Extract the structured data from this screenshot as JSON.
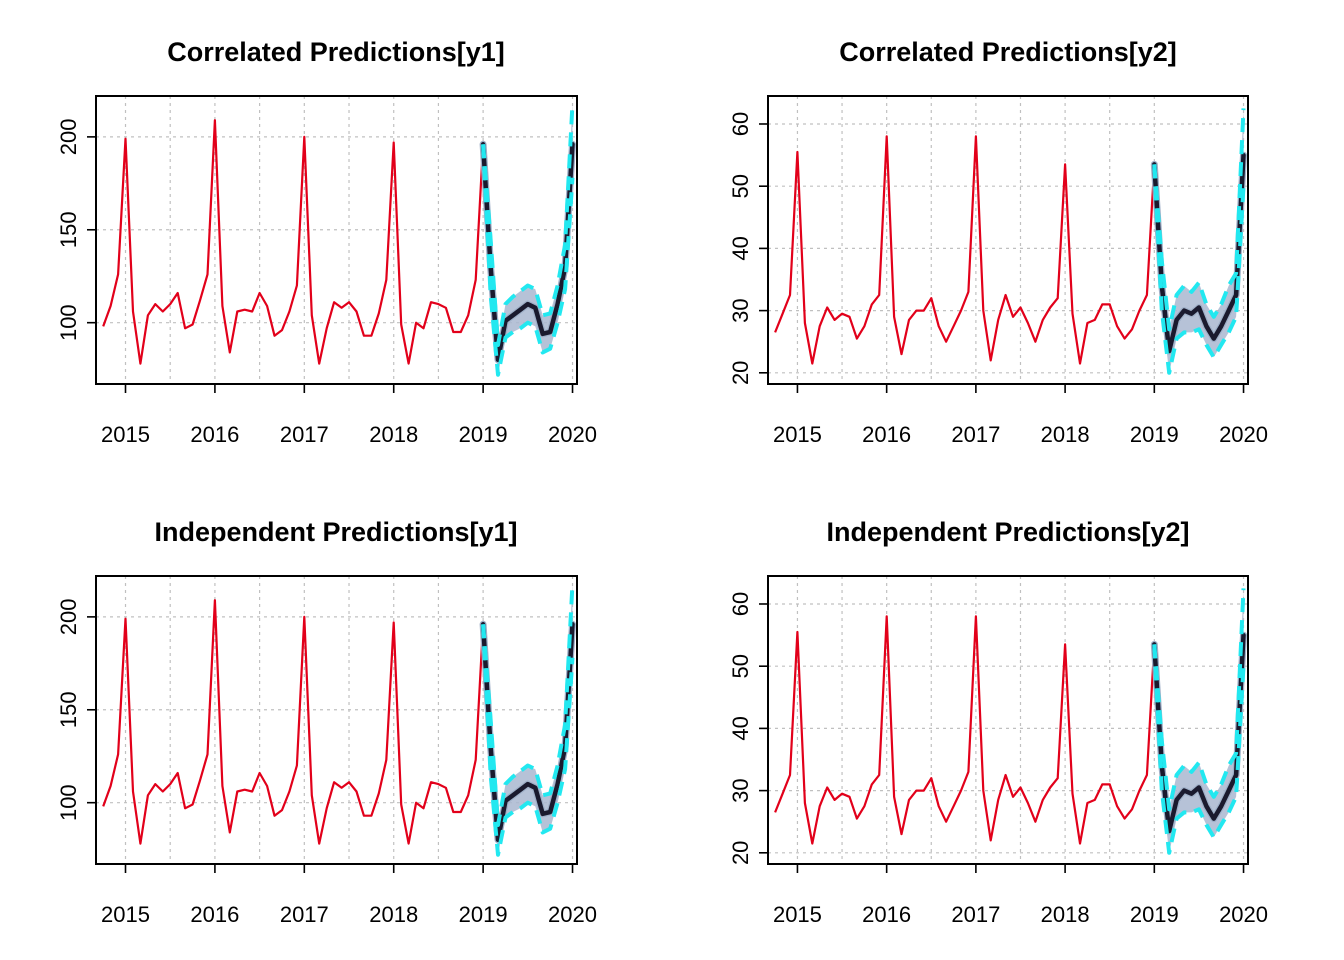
{
  "panels": [
    {
      "title": "Correlated Predictions[y1]",
      "x_ticks": [
        "2015",
        "2016",
        "2017",
        "2018",
        "2019",
        "2020"
      ],
      "y_ticks": [
        "100",
        "150",
        "200"
      ]
    },
    {
      "title": "Correlated Predictions[y2]",
      "x_ticks": [
        "2015",
        "2016",
        "2017",
        "2018",
        "2019",
        "2020"
      ],
      "y_ticks": [
        "20",
        "30",
        "40",
        "50",
        "60"
      ]
    },
    {
      "title": "Independent Predictions[y1]",
      "x_ticks": [
        "2015",
        "2016",
        "2017",
        "2018",
        "2019",
        "2020"
      ],
      "y_ticks": [
        "100",
        "150",
        "200"
      ]
    },
    {
      "title": "Independent Predictions[y2]",
      "x_ticks": [
        "2015",
        "2016",
        "2017",
        "2018",
        "2019",
        "2020"
      ],
      "y_ticks": [
        "20",
        "30",
        "40",
        "50",
        "60"
      ]
    }
  ],
  "colors": {
    "observed": "#e2001a",
    "prediction": "#1a1a2e",
    "interval_band": "#a9b7d0",
    "interval_bounds": "#22e8f0",
    "grid": "#c0c0c0",
    "axis": "#000000"
  },
  "chart_data": [
    {
      "type": "line",
      "title": "Correlated Predictions[y1]",
      "xlabel": "",
      "ylabel": "",
      "xlim": [
        2014.67,
        2020.05
      ],
      "ylim": [
        67,
        222
      ],
      "x_ticks": [
        2015,
        2016,
        2017,
        2018,
        2019,
        2020
      ],
      "y_ticks": [
        100,
        150,
        200
      ],
      "grid": true,
      "series": [
        {
          "role": "observed",
          "x_start": 2014.75,
          "x_step": 0.08333,
          "values": [
            98,
            109,
            126,
            199,
            106,
            78,
            104,
            110,
            106,
            110,
            116,
            97,
            99,
            112,
            126,
            209,
            109,
            84,
            106,
            107,
            106,
            116,
            109,
            93,
            96,
            106,
            120,
            200,
            104,
            78,
            97,
            111,
            108,
            111,
            106,
            93,
            93,
            105,
            123,
            197,
            99,
            78,
            100,
            97,
            111,
            110,
            108,
            95,
            95,
            104,
            123,
            196
          ]
        },
        {
          "role": "prediction",
          "x_start": 2019.0,
          "x_step": 0.08333,
          "values": [
            196,
            130,
            80,
            101,
            104,
            107,
            110,
            108,
            94,
            95,
            110,
            130,
            196
          ]
        },
        {
          "role": "interval_lower",
          "x_start": 2019.0,
          "x_step": 0.08333,
          "values": [
            196,
            115,
            72,
            92,
            95,
            97,
            100,
            98,
            84,
            86,
            100,
            118,
            178
          ]
        },
        {
          "role": "interval_upper",
          "x_start": 2019.0,
          "x_step": 0.08333,
          "values": [
            196,
            145,
            88,
            110,
            114,
            117,
            120,
            118,
            104,
            105,
            120,
            142,
            218
          ]
        }
      ]
    },
    {
      "type": "line",
      "title": "Correlated Predictions[y2]",
      "xlabel": "",
      "ylabel": "",
      "xlim": [
        2014.67,
        2020.05
      ],
      "ylim": [
        18.2,
        64.5
      ],
      "x_ticks": [
        2015,
        2016,
        2017,
        2018,
        2019,
        2020
      ],
      "y_ticks": [
        20,
        30,
        40,
        50,
        60
      ],
      "grid": true,
      "series": [
        {
          "role": "observed",
          "x_start": 2014.75,
          "x_step": 0.08333,
          "values": [
            26.5,
            29.5,
            32.5,
            55.5,
            28,
            21.5,
            27.5,
            30.5,
            28.5,
            29.5,
            29,
            25.5,
            27.5,
            31,
            32.5,
            58,
            29,
            23,
            28.5,
            30,
            30,
            32,
            27.5,
            25,
            27.5,
            30,
            33,
            58,
            30,
            22,
            28.5,
            32.5,
            29,
            30.5,
            28,
            25,
            28.5,
            30.5,
            32,
            53.5,
            29.5,
            21.5,
            28,
            28.5,
            31,
            31,
            27.5,
            25.5,
            27,
            30,
            32.5,
            53.5
          ]
        },
        {
          "role": "prediction",
          "x_start": 2019.0,
          "x_step": 0.08333,
          "values": [
            53.5,
            34,
            23.5,
            28.5,
            30,
            29.5,
            30.5,
            27.5,
            25.5,
            27.5,
            30,
            32.5,
            55
          ]
        },
        {
          "role": "interval_lower",
          "x_start": 2019.0,
          "x_step": 0.08333,
          "values": [
            53.5,
            30,
            20,
            25.5,
            26.5,
            26.5,
            27,
            24.5,
            22.5,
            24.5,
            26.5,
            29,
            50
          ]
        },
        {
          "role": "interval_upper",
          "x_start": 2019.0,
          "x_step": 0.08333,
          "values": [
            53.5,
            38,
            27,
            32.5,
            34,
            33,
            34.5,
            31,
            29,
            31,
            34,
            36,
            62.5
          ]
        }
      ]
    },
    {
      "type": "line",
      "title": "Independent Predictions[y1]",
      "xlabel": "",
      "ylabel": "",
      "xlim": [
        2014.67,
        2020.05
      ],
      "ylim": [
        67,
        222
      ],
      "x_ticks": [
        2015,
        2016,
        2017,
        2018,
        2019,
        2020
      ],
      "y_ticks": [
        100,
        150,
        200
      ],
      "grid": true,
      "series": [
        {
          "role": "observed",
          "x_start": 2014.75,
          "x_step": 0.08333,
          "values": [
            98,
            109,
            126,
            199,
            106,
            78,
            104,
            110,
            106,
            110,
            116,
            97,
            99,
            112,
            126,
            209,
            109,
            84,
            106,
            107,
            106,
            116,
            109,
            93,
            96,
            106,
            120,
            200,
            104,
            78,
            97,
            111,
            108,
            111,
            106,
            93,
            93,
            105,
            123,
            197,
            99,
            78,
            100,
            97,
            111,
            110,
            108,
            95,
            95,
            104,
            123,
            196
          ]
        },
        {
          "role": "prediction",
          "x_start": 2019.0,
          "x_step": 0.08333,
          "values": [
            196,
            130,
            80,
            101,
            104,
            107,
            110,
            108,
            94,
            95,
            110,
            130,
            196
          ]
        },
        {
          "role": "interval_lower",
          "x_start": 2019.0,
          "x_step": 0.08333,
          "values": [
            196,
            115,
            72,
            92,
            95,
            97,
            100,
            98,
            84,
            86,
            100,
            118,
            178
          ]
        },
        {
          "role": "interval_upper",
          "x_start": 2019.0,
          "x_step": 0.08333,
          "values": [
            196,
            145,
            88,
            110,
            114,
            117,
            120,
            118,
            104,
            105,
            120,
            142,
            218
          ]
        }
      ]
    },
    {
      "type": "line",
      "title": "Independent Predictions[y2]",
      "xlabel": "",
      "ylabel": "",
      "xlim": [
        2014.67,
        2020.05
      ],
      "ylim": [
        18.2,
        64.5
      ],
      "x_ticks": [
        2015,
        2016,
        2017,
        2018,
        2019,
        2020
      ],
      "y_ticks": [
        20,
        30,
        40,
        50,
        60
      ],
      "grid": true,
      "series": [
        {
          "role": "observed",
          "x_start": 2014.75,
          "x_step": 0.08333,
          "values": [
            26.5,
            29.5,
            32.5,
            55.5,
            28,
            21.5,
            27.5,
            30.5,
            28.5,
            29.5,
            29,
            25.5,
            27.5,
            31,
            32.5,
            58,
            29,
            23,
            28.5,
            30,
            30,
            32,
            27.5,
            25,
            27.5,
            30,
            33,
            58,
            30,
            22,
            28.5,
            32.5,
            29,
            30.5,
            28,
            25,
            28.5,
            30.5,
            32,
            53.5,
            29.5,
            21.5,
            28,
            28.5,
            31,
            31,
            27.5,
            25.5,
            27,
            30,
            32.5,
            53.5
          ]
        },
        {
          "role": "prediction",
          "x_start": 2019.0,
          "x_step": 0.08333,
          "values": [
            53.5,
            34,
            23.5,
            28.5,
            30,
            29.5,
            30.5,
            27.5,
            25.5,
            27.5,
            30,
            32.5,
            55
          ]
        },
        {
          "role": "interval_lower",
          "x_start": 2019.0,
          "x_step": 0.08333,
          "values": [
            53.5,
            30,
            20,
            25.5,
            26.5,
            26.5,
            27,
            24.5,
            22.5,
            24.5,
            26.5,
            29,
            50
          ]
        },
        {
          "role": "interval_upper",
          "x_start": 2019.0,
          "x_step": 0.08333,
          "values": [
            53.5,
            38,
            27,
            32.5,
            34,
            33,
            34.5,
            31,
            29,
            31,
            34,
            36,
            62.5
          ]
        }
      ]
    }
  ]
}
